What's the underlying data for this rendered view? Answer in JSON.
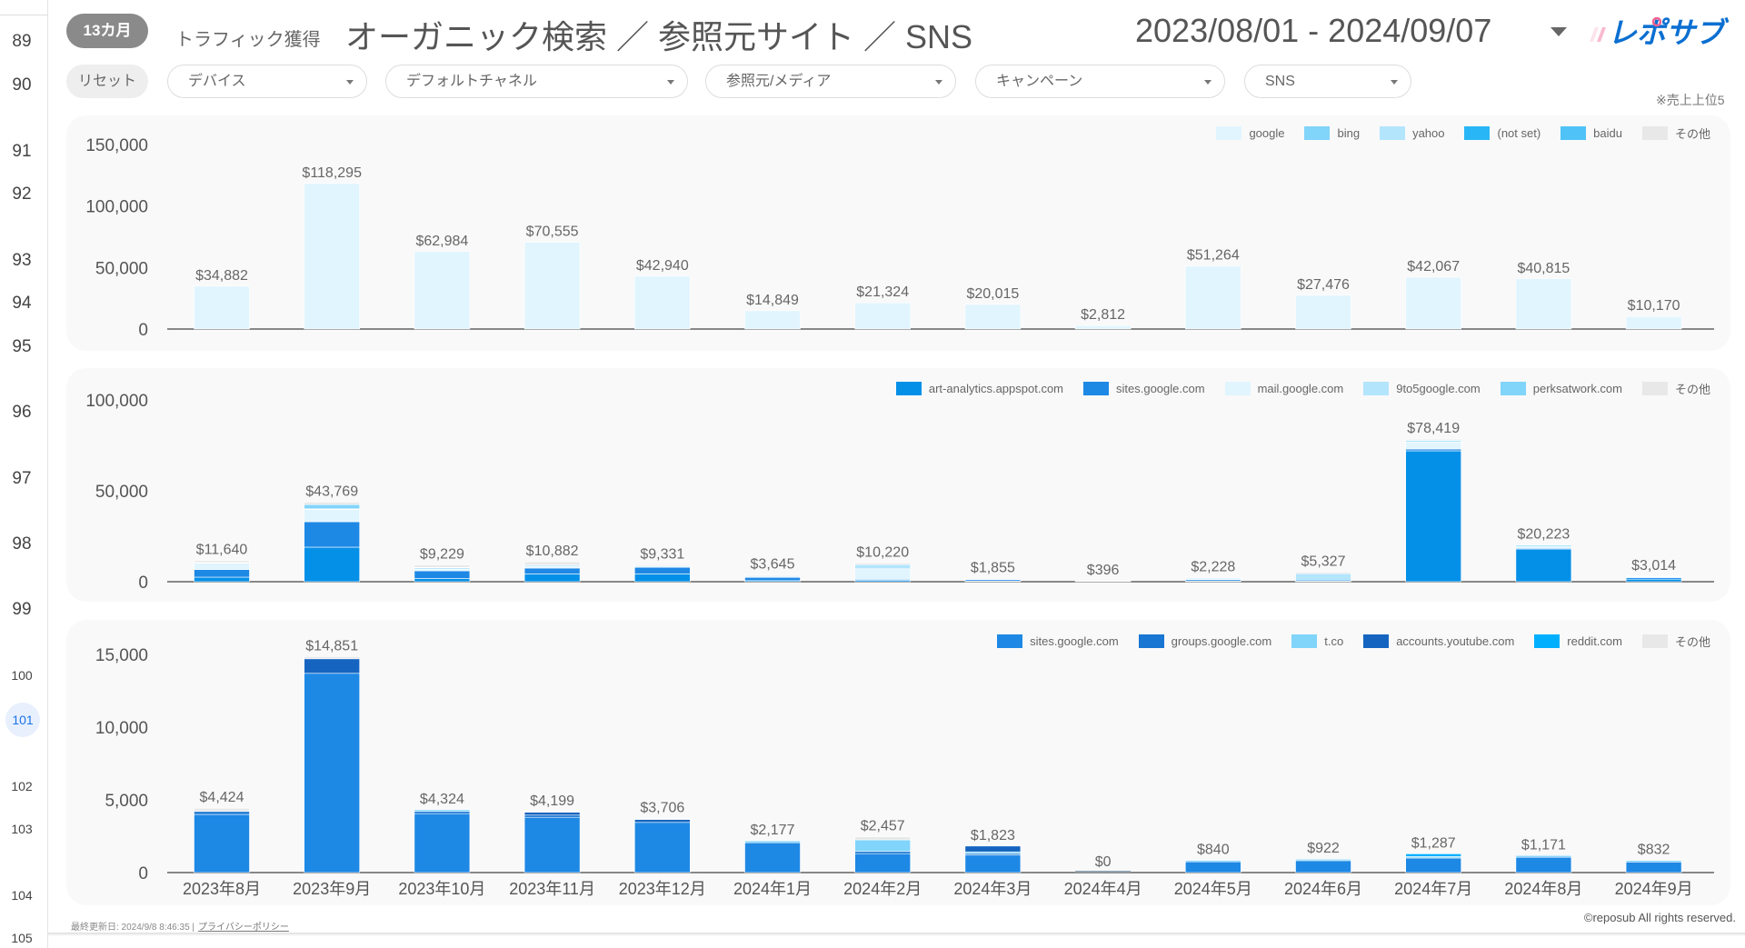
{
  "row_numbers": [
    "89",
    "90",
    "91",
    "92",
    "93",
    "94",
    "95",
    "96",
    "97",
    "98",
    "99",
    "100",
    "101",
    "102",
    "103",
    "104",
    "105"
  ],
  "active_row": "101",
  "header": {
    "period_badge": "13カ月",
    "subtitle": "トラフィック獲得",
    "title": "オーガニック検索 ／ 参照元サイト ／ SNS",
    "date_range": "2023/08/01 - 2024/09/07",
    "logo_text": "レポサブ"
  },
  "filters": {
    "reset_label": "リセット",
    "items": [
      {
        "label": "デバイス"
      },
      {
        "label": "デフォルトチャネル"
      },
      {
        "label": "参照元/メディア"
      },
      {
        "label": "キャンペーン"
      },
      {
        "label": "SNS"
      }
    ]
  },
  "note": "※売上上位5",
  "colors": {
    "accent": "#1E88E5",
    "logo_blue": "#0b6fd1",
    "logo_pink": "#f06292"
  },
  "chart_data": [
    {
      "type": "bar",
      "stacked": true,
      "title": "",
      "ylim": [
        0,
        150000
      ],
      "yticks": [
        0,
        50000,
        100000,
        150000
      ],
      "ytick_labels": [
        "0",
        "50,000",
        "100,000",
        "150,000"
      ],
      "grid": false,
      "legend": "top-right",
      "categories": [
        "2023年8月",
        "2023年9月",
        "2023年10月",
        "2023年11月",
        "2023年12月",
        "2024年1月",
        "2024年2月",
        "2024年3月",
        "2024年4月",
        "2024年5月",
        "2024年6月",
        "2024年7月",
        "2024年8月",
        "2024年9月"
      ],
      "totals": [
        "$34,882",
        "$118,295",
        "$62,984",
        "$70,555",
        "$42,940",
        "$14,849",
        "$21,324",
        "$20,015",
        "$2,812",
        "$51,264",
        "$27,476",
        "$42,067",
        "$40,815",
        "$10,170"
      ],
      "series": [
        {
          "name": "google",
          "color": "#E1F5FE",
          "values": [
            34882,
            118295,
            62984,
            70555,
            42940,
            14849,
            21324,
            20015,
            2812,
            51264,
            27476,
            42067,
            40815,
            10170
          ]
        },
        {
          "name": "bing",
          "color": "#81D4FA",
          "values": [
            0,
            0,
            0,
            0,
            0,
            0,
            0,
            0,
            0,
            0,
            0,
            0,
            0,
            0
          ]
        },
        {
          "name": "yahoo",
          "color": "#B3E5FC",
          "values": [
            0,
            0,
            0,
            0,
            0,
            0,
            0,
            0,
            0,
            0,
            0,
            0,
            0,
            0
          ]
        },
        {
          "name": "(not set)",
          "color": "#29B6F6",
          "values": [
            0,
            0,
            0,
            0,
            0,
            0,
            0,
            0,
            0,
            0,
            0,
            0,
            0,
            0
          ]
        },
        {
          "name": "baidu",
          "color": "#4FC3F7",
          "values": [
            0,
            0,
            0,
            0,
            0,
            0,
            0,
            0,
            0,
            0,
            0,
            0,
            0,
            0
          ]
        },
        {
          "name": "その他",
          "color": "#E8E8E8",
          "values": [
            0,
            0,
            0,
            0,
            0,
            0,
            0,
            0,
            0,
            0,
            0,
            0,
            0,
            0
          ]
        }
      ]
    },
    {
      "type": "bar",
      "stacked": true,
      "title": "",
      "ylim": [
        0,
        100000
      ],
      "yticks": [
        0,
        50000,
        100000
      ],
      "ytick_labels": [
        "0",
        "50,000",
        "100,000"
      ],
      "grid": false,
      "legend": "top-right",
      "categories": [
        "2023年8月",
        "2023年9月",
        "2023年10月",
        "2023年11月",
        "2023年12月",
        "2024年1月",
        "2024年2月",
        "2024年3月",
        "2024年4月",
        "2024年5月",
        "2024年6月",
        "2024年7月",
        "2024年8月",
        "2024年9月"
      ],
      "totals": [
        "$11,640",
        "$43,769",
        "$9,229",
        "$10,882",
        "$9,331",
        "$3,645",
        "$10,220",
        "$1,855",
        "$396",
        "$2,228",
        "$5,327",
        "$78,419",
        "$20,223",
        "$3,014"
      ],
      "series": [
        {
          "name": "art-analytics.appspot.com",
          "color": "#0590E8",
          "values": [
            2500,
            19000,
            1800,
            4300,
            4300,
            600,
            700,
            300,
            0,
            300,
            300,
            72000,
            18000,
            1400
          ]
        },
        {
          "name": "sites.google.com",
          "color": "#1E88E5",
          "values": [
            4200,
            14000,
            4200,
            3200,
            3600,
            1800,
            600,
            800,
            0,
            800,
            600,
            1000,
            500,
            800
          ]
        },
        {
          "name": "mail.google.com",
          "color": "#E1F5FE",
          "values": [
            3500,
            6800,
            900,
            1000,
            300,
            200,
            5800,
            300,
            0,
            300,
            0,
            3800,
            200,
            0
          ]
        },
        {
          "name": "9to5google.com",
          "color": "#B3E5FC",
          "values": [
            300,
            300,
            800,
            700,
            600,
            500,
            2300,
            0,
            0,
            500,
            3600,
            1000,
            600,
            500
          ]
        },
        {
          "name": "perksatwork.com",
          "color": "#81D4FA",
          "values": [
            140,
            2300,
            200,
            0,
            0,
            0,
            0,
            0,
            0,
            0,
            0,
            0,
            900,
            0
          ]
        },
        {
          "name": "その他",
          "color": "#E8E8E8",
          "values": [
            1000,
            1369,
            1329,
            1682,
            531,
            545,
            820,
            455,
            396,
            328,
            827,
            619,
            23,
            314
          ]
        }
      ]
    },
    {
      "type": "bar",
      "stacked": true,
      "title": "",
      "ylim": [
        0,
        15000
      ],
      "yticks": [
        0,
        5000,
        10000,
        15000
      ],
      "ytick_labels": [
        "0",
        "5,000",
        "10,000",
        "15,000"
      ],
      "grid": false,
      "legend": "top-right",
      "categories": [
        "2023年8月",
        "2023年9月",
        "2023年10月",
        "2023年11月",
        "2023年12月",
        "2024年1月",
        "2024年2月",
        "2024年3月",
        "2024年4月",
        "2024年5月",
        "2024年6月",
        "2024年7月",
        "2024年8月",
        "2024年9月"
      ],
      "totals": [
        "$4,424",
        "$14,851",
        "$4,324",
        "$4,199",
        "$3,706",
        "$2,177",
        "$2,457",
        "$1,823",
        "$0",
        "$840",
        "$922",
        "$1,287",
        "$1,171",
        "$832"
      ],
      "series": [
        {
          "name": "sites.google.com",
          "color": "#1E88E5",
          "values": [
            4000,
            13700,
            4050,
            3800,
            3450,
            2050,
            1300,
            1200,
            0,
            740,
            820,
            1000,
            1050,
            730
          ]
        },
        {
          "name": "groups.google.com",
          "color": "#1976D2",
          "values": [
            200,
            0,
            150,
            150,
            0,
            0,
            150,
            100,
            0,
            0,
            0,
            0,
            0,
            0
          ]
        },
        {
          "name": "t.co",
          "color": "#81D4FA",
          "values": [
            0,
            0,
            124,
            0,
            0,
            127,
            800,
            123,
            0,
            100,
            102,
            100,
            121,
            102
          ]
        },
        {
          "name": "accounts.youtube.com",
          "color": "#1565C0",
          "values": [
            0,
            1000,
            0,
            200,
            200,
            0,
            0,
            400,
            0,
            0,
            0,
            0,
            0,
            0
          ]
        },
        {
          "name": "reddit.com",
          "color": "#00B0FF",
          "values": [
            0,
            0,
            0,
            0,
            0,
            0,
            0,
            0,
            0,
            0,
            0,
            187,
            0,
            0
          ]
        },
        {
          "name": "その他",
          "color": "#E8E8E8",
          "values": [
            224,
            151,
            0,
            49,
            56,
            0,
            207,
            0,
            0,
            0,
            0,
            0,
            0,
            0
          ]
        }
      ]
    }
  ],
  "footer": {
    "last_updated": "最終更新日: 2024/9/8 8:46:35",
    "privacy_link": "プライバシーポリシー",
    "copyright": "©reposub All rights reserved."
  }
}
